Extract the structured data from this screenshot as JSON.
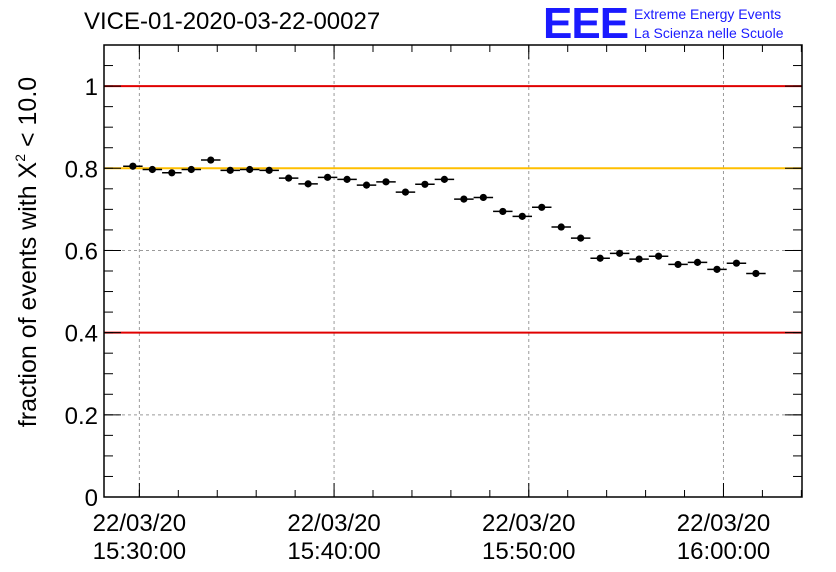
{
  "header": {
    "title": "VICE-01-2020-03-22-00027",
    "logo": {
      "mark": "EEE",
      "line1": "Extreme Energy Events",
      "line2": "La Scienza nelle Scuole",
      "color": "#1a1aff"
    }
  },
  "chart_data": {
    "type": "scatter",
    "title": "VICE-01-2020-03-22-00027",
    "xlabel": "",
    "ylabel_parts": {
      "prefix": "fraction of events with ",
      "symbol": "X",
      "exponent": "2",
      "suffix": " < 10.0"
    },
    "ylim": [
      0,
      1.1
    ],
    "xlim": [
      "2020-03-22 15:28:11",
      "2020-03-22 16:04:02"
    ],
    "grid": true,
    "yticks": [
      {
        "value": 0,
        "label": "0"
      },
      {
        "value": 0.2,
        "label": "0.2"
      },
      {
        "value": 0.4,
        "label": "0.4"
      },
      {
        "value": 0.6,
        "label": "0.6"
      },
      {
        "value": 0.8,
        "label": "0.8"
      },
      {
        "value": 1,
        "label": "1"
      }
    ],
    "xticks": [
      {
        "time": "15:30:00",
        "date": "22/03/20",
        "time_label": "15:30:00"
      },
      {
        "time": "15:40:00",
        "date": "22/03/20",
        "time_label": "15:40:00"
      },
      {
        "time": "15:50:00",
        "date": "22/03/20",
        "time_label": "15:50:00"
      },
      {
        "time": "16:00:00",
        "date": "22/03/20",
        "time_label": "16:00:00"
      }
    ],
    "reference_lines": [
      {
        "value": 1.0,
        "color": "#e00000"
      },
      {
        "value": 0.8,
        "color": "#ffbf00"
      },
      {
        "value": 0.4,
        "color": "#e00000"
      }
    ],
    "points": [
      {
        "x": "15:29:40",
        "y": 0.805
      },
      {
        "x": "15:30:40",
        "y": 0.797
      },
      {
        "x": "15:31:40",
        "y": 0.789
      },
      {
        "x": "15:32:40",
        "y": 0.797
      },
      {
        "x": "15:33:40",
        "y": 0.82
      },
      {
        "x": "15:34:40",
        "y": 0.795
      },
      {
        "x": "15:35:40",
        "y": 0.797
      },
      {
        "x": "15:36:40",
        "y": 0.795
      },
      {
        "x": "15:37:40",
        "y": 0.776
      },
      {
        "x": "15:38:40",
        "y": 0.762
      },
      {
        "x": "15:39:40",
        "y": 0.778
      },
      {
        "x": "15:40:40",
        "y": 0.773
      },
      {
        "x": "15:41:40",
        "y": 0.759
      },
      {
        "x": "15:42:40",
        "y": 0.767
      },
      {
        "x": "15:43:40",
        "y": 0.742
      },
      {
        "x": "15:44:40",
        "y": 0.761
      },
      {
        "x": "15:45:40",
        "y": 0.773
      },
      {
        "x": "15:46:40",
        "y": 0.725
      },
      {
        "x": "15:47:40",
        "y": 0.729
      },
      {
        "x": "15:48:40",
        "y": 0.695
      },
      {
        "x": "15:49:40",
        "y": 0.683
      },
      {
        "x": "15:50:40",
        "y": 0.705
      },
      {
        "x": "15:51:40",
        "y": 0.657
      },
      {
        "x": "15:52:40",
        "y": 0.63
      },
      {
        "x": "15:53:40",
        "y": 0.581
      },
      {
        "x": "15:54:40",
        "y": 0.593
      },
      {
        "x": "15:55:40",
        "y": 0.579
      },
      {
        "x": "15:56:40",
        "y": 0.586
      },
      {
        "x": "15:57:40",
        "y": 0.566
      },
      {
        "x": "15:58:40",
        "y": 0.571
      },
      {
        "x": "15:59:40",
        "y": 0.554
      },
      {
        "x": "16:00:40",
        "y": 0.569
      },
      {
        "x": "16:01:40",
        "y": 0.544
      }
    ],
    "bin_minutes": 1,
    "error": 0.008
  }
}
